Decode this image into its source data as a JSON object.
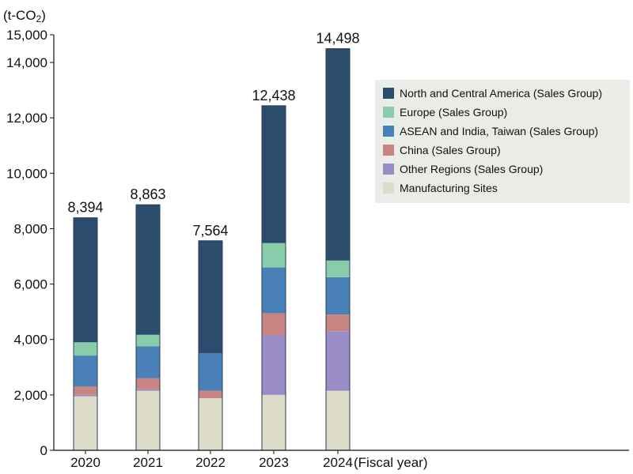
{
  "chart_data": {
    "type": "bar",
    "stacked": true,
    "unit_label": "(t-CO2)",
    "unit_label_main": "(t-CO",
    "unit_label_sub": "2",
    "unit_label_close": ")",
    "xlabel": "(Fiscal year)",
    "categories": [
      "2020",
      "2021",
      "2022",
      "2023",
      "2024"
    ],
    "totals": [
      8394,
      8863,
      7564,
      12438,
      14498
    ],
    "total_labels": [
      "8,394",
      "8,863",
      "7,564",
      "12,438",
      "14,498"
    ],
    "ylim": [
      0,
      15000
    ],
    "yticks": [
      0,
      2000,
      4000,
      6000,
      8000,
      10000,
      12000,
      14000,
      15000
    ],
    "ytick_labels": [
      "0",
      "2,000",
      "4,000",
      "6,000",
      "8,000",
      "10,000",
      "12,000",
      "14,000",
      "15,000"
    ],
    "series": [
      {
        "name": "Manufacturing Sites",
        "color": "#dcdcc8",
        "values": [
          1950,
          2150,
          1880,
          2000,
          2150
        ]
      },
      {
        "name": "Other Regions (Sales Group)",
        "color": "#9a8cc6",
        "values": [
          50,
          50,
          0,
          2150,
          2150
        ]
      },
      {
        "name": "China (Sales Group)",
        "color": "#c88480",
        "values": [
          300,
          400,
          270,
          800,
          600
        ]
      },
      {
        "name": "ASEAN and India, Taiwan (Sales Group)",
        "color": "#4a80b8",
        "values": [
          1120,
          1150,
          1350,
          1650,
          1350
        ]
      },
      {
        "name": "Europe (Sales Group)",
        "color": "#88ccaa",
        "values": [
          480,
          420,
          0,
          880,
          600
        ]
      },
      {
        "name": "North and Central America (Sales Group)",
        "color": "#2c4c6e",
        "values": [
          4494,
          4693,
          4064,
          4958,
          7648
        ]
      }
    ],
    "legend_order": [
      "North and Central America (Sales Group)",
      "Europe (Sales Group)",
      "ASEAN and India, Taiwan (Sales Group)",
      "China (Sales Group)",
      "Other Regions (Sales Group)",
      "Manufacturing Sites"
    ],
    "legend_position": "right",
    "grid": false
  }
}
